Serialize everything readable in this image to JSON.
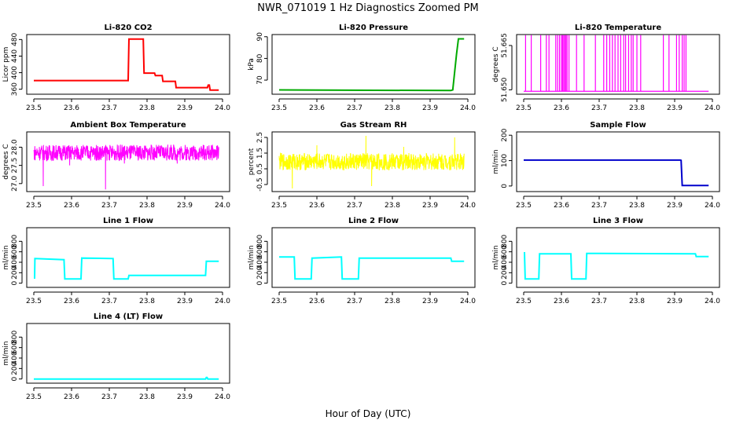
{
  "figure": {
    "title": "NWR_071019  1 Hz Diagnostics Zoomed PM",
    "xlabel": "Hour of Day (UTC)"
  },
  "chart_data": [
    {
      "type": "line",
      "title": "Li-820 CO2",
      "ylabel": "Licor ppm",
      "color": "#ff0000",
      "xlim": [
        23.5,
        24.0
      ],
      "xticks": [
        "23.5",
        "23.6",
        "23.7",
        "23.8",
        "23.9",
        "24.0"
      ],
      "ylim": [
        348,
        492
      ],
      "yticks": [
        {
          "v": 360,
          "label": "360"
        },
        {
          "v": 400,
          "label": "400"
        },
        {
          "v": 440,
          "label": "440"
        },
        {
          "v": 480,
          "label": "480"
        }
      ],
      "series": [
        {
          "x": [
            23.5,
            23.75,
            23.752,
            23.79,
            23.792,
            23.82,
            23.822,
            23.84,
            23.842,
            23.875,
            23.877,
            23.96,
            23.962,
            23.965,
            23.967,
            23.99
          ],
          "y": [
            381,
            381,
            481,
            481,
            399,
            399,
            393,
            393,
            379,
            379,
            364,
            364,
            370,
            370,
            358,
            358
          ]
        }
      ]
    },
    {
      "type": "line",
      "title": "Li-820 Pressure",
      "ylabel": "kPa",
      "color": "#00aa00",
      "xlim": [
        23.5,
        24.0
      ],
      "xticks": [
        "23.5",
        "23.6",
        "23.7",
        "23.8",
        "23.9",
        "24.0"
      ],
      "ylim": [
        63.5,
        91
      ],
      "yticks": [
        {
          "v": 70,
          "label": "70"
        },
        {
          "v": 80,
          "label": "80"
        },
        {
          "v": 90,
          "label": "90"
        }
      ],
      "series": [
        {
          "x": [
            23.5,
            23.955,
            23.96,
            23.97,
            23.975,
            23.99
          ],
          "y": [
            65.5,
            65.2,
            65.5,
            82,
            89,
            89
          ]
        }
      ]
    },
    {
      "type": "line",
      "title": "Li-820 Temperature",
      "ylabel": "degrees C",
      "color": "#ff00ff",
      "xlim": [
        23.5,
        24.0
      ],
      "xticks": [
        "23.5",
        "23.6",
        "23.7",
        "23.8",
        "23.9",
        "24.0"
      ],
      "ylim": [
        51.6485,
        51.6687
      ],
      "yticks": [
        {
          "v": 51.65,
          "label": "51.650"
        },
        {
          "v": 51.665,
          "label": "51.665"
        }
      ],
      "baseline": 51.6495,
      "spike_top": 51.6685,
      "spikes": [
        23.505,
        23.52,
        23.545,
        23.56,
        23.567,
        23.585,
        23.59,
        23.595,
        23.6,
        23.603,
        23.606,
        23.609,
        23.612,
        23.615,
        23.62,
        23.64,
        23.66,
        23.69,
        23.712,
        23.72,
        23.728,
        23.735,
        23.742,
        23.75,
        23.757,
        23.765,
        23.77,
        23.778,
        23.785,
        23.79,
        23.8,
        23.81,
        23.87,
        23.885,
        23.905,
        23.912,
        23.92,
        23.925,
        23.93
      ]
    },
    {
      "type": "line",
      "title": "Ambient Box Temperature",
      "ylabel": "degrees C",
      "color": "#ff00ff",
      "xlim": [
        23.5,
        24.0
      ],
      "xticks": [
        "23.5",
        "23.6",
        "23.7",
        "23.8",
        "23.9",
        "24.0"
      ],
      "ylim": [
        26.78,
        28.42
      ],
      "yticks": [
        {
          "v": 27.0,
          "label": "27.0"
        },
        {
          "v": 27.5,
          "label": "27.5"
        },
        {
          "v": 28.0,
          "label": "28.0"
        }
      ],
      "noise": {
        "center": 27.85,
        "amp": 0.22
      },
      "dips": [
        {
          "x": 23.525,
          "y": 26.93
        },
        {
          "x": 23.595,
          "y": 27.5
        },
        {
          "x": 23.69,
          "y": 26.84
        },
        {
          "x": 23.74,
          "y": 27.55
        },
        {
          "x": 23.88,
          "y": 27.55
        }
      ]
    },
    {
      "type": "line",
      "title": "Gas Stream RH",
      "ylabel": "percent",
      "color": "#ffff00",
      "xlim": [
        23.5,
        24.0
      ],
      "xticks": [
        "23.5",
        "23.6",
        "23.7",
        "23.8",
        "23.9",
        "24.0"
      ],
      "ylim": [
        -0.95,
        2.85
      ],
      "yticks": [
        {
          "v": -0.5,
          "label": "-0.5"
        },
        {
          "v": 0.5,
          "label": "0.5"
        },
        {
          "v": 1.5,
          "label": "1.5"
        },
        {
          "v": 2.5,
          "label": "2.5"
        }
      ],
      "noise": {
        "center": 0.95,
        "amp": 0.55
      },
      "spikes": [
        {
          "x": 23.535,
          "y": -0.75
        },
        {
          "x": 23.6,
          "y": 2.0
        },
        {
          "x": 23.73,
          "y": 2.6
        },
        {
          "x": 23.745,
          "y": -0.6
        },
        {
          "x": 23.83,
          "y": 1.9
        },
        {
          "x": 23.965,
          "y": 2.5
        }
      ]
    },
    {
      "type": "line",
      "title": "Sample Flow",
      "ylabel": "ml/min",
      "color": "#0000cc",
      "xlim": [
        23.5,
        24.0
      ],
      "xticks": [
        "23.5",
        "23.6",
        "23.7",
        "23.8",
        "23.9",
        "24.0"
      ],
      "ylim": [
        -22,
        213
      ],
      "yticks": [
        {
          "v": 0,
          "label": "0"
        },
        {
          "v": 100,
          "label": "100"
        },
        {
          "v": 200,
          "label": "200"
        }
      ],
      "series": [
        {
          "x": [
            23.5,
            23.915,
            23.917,
            23.92,
            23.99
          ],
          "y": [
            102,
            102,
            101,
            2,
            2
          ]
        }
      ]
    },
    {
      "type": "line",
      "title": "Line 1 Flow",
      "ylabel": "ml/min",
      "color": "#00ffff",
      "xlim": [
        23.5,
        24.0
      ],
      "xticks": [
        "23.5",
        "23.6",
        "23.7",
        "23.8",
        "23.9",
        "24.0"
      ],
      "ylim": [
        -80,
        1060
      ],
      "yticks": [
        {
          "v": 0,
          "label": "0"
        },
        {
          "v": 200,
          "label": "200"
        },
        {
          "v": 400,
          "label": "400"
        },
        {
          "v": 600,
          "label": "600"
        },
        {
          "v": 800,
          "label": "800"
        }
      ],
      "series": [
        {
          "x": [
            23.5,
            23.502,
            23.503,
            23.58,
            23.582,
            23.625,
            23.627,
            23.71,
            23.712,
            23.75,
            23.752,
            23.955,
            23.957,
            23.99
          ],
          "y": [
            100,
            100,
            470,
            450,
            80,
            80,
            480,
            470,
            80,
            80,
            150,
            150,
            420,
            420
          ]
        }
      ]
    },
    {
      "type": "line",
      "title": "Line 2 Flow",
      "ylabel": "ml/min",
      "color": "#00ffff",
      "xlim": [
        23.5,
        24.0
      ],
      "xticks": [
        "23.5",
        "23.6",
        "23.7",
        "23.8",
        "23.9",
        "24.0"
      ],
      "ylim": [
        -80,
        1060
      ],
      "yticks": [
        {
          "v": 0,
          "label": "0"
        },
        {
          "v": 200,
          "label": "200"
        },
        {
          "v": 400,
          "label": "400"
        },
        {
          "v": 600,
          "label": "600"
        },
        {
          "v": 800,
          "label": "800"
        }
      ],
      "series": [
        {
          "x": [
            23.5,
            23.54,
            23.542,
            23.585,
            23.587,
            23.665,
            23.667,
            23.71,
            23.712,
            23.955,
            23.957,
            23.99
          ],
          "y": [
            500,
            500,
            80,
            80,
            480,
            500,
            80,
            80,
            480,
            480,
            420,
            420
          ]
        }
      ]
    },
    {
      "type": "line",
      "title": "Line 3 Flow",
      "ylabel": "ml/min",
      "color": "#00ffff",
      "xlim": [
        23.5,
        24.0
      ],
      "xticks": [
        "23.5",
        "23.6",
        "23.7",
        "23.8",
        "23.9",
        "24.0"
      ],
      "ylim": [
        -80,
        1060
      ],
      "yticks": [
        {
          "v": 0,
          "label": "0"
        },
        {
          "v": 200,
          "label": "200"
        },
        {
          "v": 400,
          "label": "400"
        },
        {
          "v": 600,
          "label": "600"
        },
        {
          "v": 800,
          "label": "800"
        }
      ],
      "series": [
        {
          "x": [
            23.5,
            23.502,
            23.504,
            23.54,
            23.542,
            23.625,
            23.627,
            23.665,
            23.667,
            23.955,
            23.957,
            23.99
          ],
          "y": [
            580,
            580,
            80,
            80,
            560,
            560,
            80,
            80,
            570,
            560,
            510,
            510
          ]
        }
      ]
    },
    {
      "type": "line",
      "title": "Line 4 (LT) Flow",
      "ylabel": "ml/min",
      "color": "#00ffff",
      "xlim": [
        23.5,
        24.0
      ],
      "xticks": [
        "23.5",
        "23.6",
        "23.7",
        "23.8",
        "23.9",
        "24.0"
      ],
      "ylim": [
        -80,
        1060
      ],
      "yticks": [
        {
          "v": 0,
          "label": "0"
        },
        {
          "v": 200,
          "label": "200"
        },
        {
          "v": 400,
          "label": "400"
        },
        {
          "v": 600,
          "label": "600"
        },
        {
          "v": 800,
          "label": "800"
        }
      ],
      "series": [
        {
          "x": [
            23.5,
            23.955,
            23.957,
            23.959,
            23.961,
            23.99
          ],
          "y": [
            0,
            0,
            30,
            30,
            0,
            0
          ]
        }
      ]
    }
  ]
}
